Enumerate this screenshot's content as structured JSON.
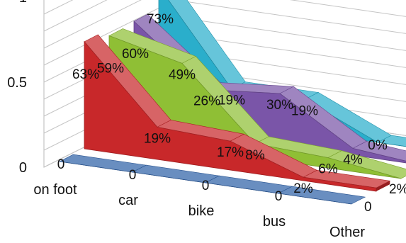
{
  "chart_data": {
    "type": "area",
    "categories": [
      "on foot",
      "car",
      "bike",
      "bus",
      "Other"
    ],
    "y_ticks": [
      "0",
      "0.5",
      "1"
    ],
    "ylim": [
      0,
      1
    ],
    "grid": true,
    "legend": "none",
    "series": [
      {
        "color": "#2f62a8",
        "values": [
          0,
          0,
          0,
          0,
          0
        ],
        "labels": [
          "0",
          "0",
          "0",
          "0",
          "0"
        ]
      },
      {
        "color": "#c8282a",
        "values": [
          0.63,
          0.19,
          0.17,
          0.02,
          0.02
        ],
        "labels": [
          "63%",
          "19%",
          "17%",
          "2%",
          "2%"
        ]
      },
      {
        "color": "#8fbf35",
        "values": [
          0.59,
          0.49,
          0.08,
          0.06,
          0
        ],
        "labels": [
          "59%",
          "49%",
          "8%",
          "6%",
          "0"
        ]
      },
      {
        "color": "#7a55a8",
        "values": [
          0.6,
          0.26,
          0.3,
          0.04,
          0
        ],
        "labels": [
          "60%",
          "26%",
          "30%",
          "4%",
          "0%"
        ]
      },
      {
        "color": "#2aaecb",
        "values": [
          0.73,
          0.19,
          0.19,
          0,
          0
        ],
        "labels": [
          "73%",
          "19%",
          "19%",
          "0%",
          "0%"
        ]
      }
    ]
  }
}
